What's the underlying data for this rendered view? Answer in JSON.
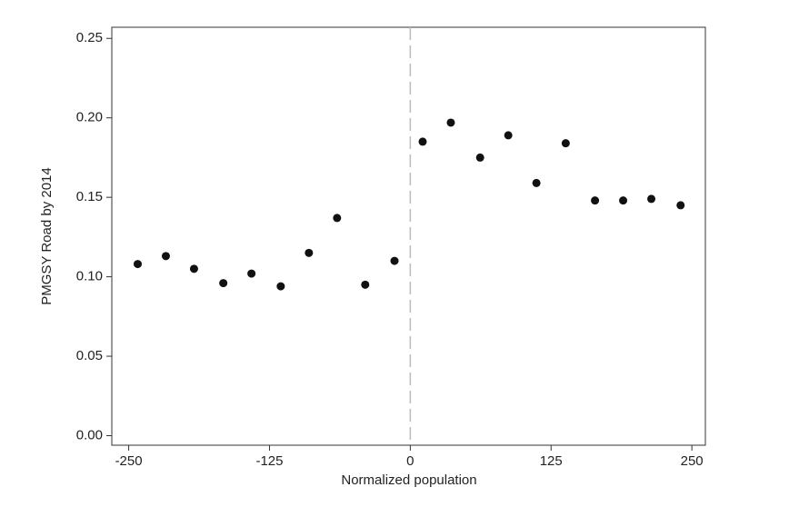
{
  "chart_data": {
    "type": "scatter",
    "x_label": "Normalized population",
    "y_label": "PMGSY Road by 2014",
    "x": [
      -242,
      -217,
      -192,
      -166,
      -141,
      -115,
      -90,
      -65,
      -40,
      -14,
      11,
      36,
      62,
      87,
      112,
      138,
      164,
      189,
      214,
      240
    ],
    "values": [
      0.108,
      0.113,
      0.105,
      0.096,
      0.102,
      0.094,
      0.115,
      0.137,
      0.095,
      0.11,
      0.185,
      0.197,
      0.175,
      0.189,
      0.159,
      0.184,
      0.148,
      0.148,
      0.149,
      0.145
    ],
    "color": "#111111",
    "xlim": [
      -265,
      262
    ],
    "ylim": [
      -0.006,
      0.257
    ],
    "xticks": [
      -250,
      -125,
      0,
      125,
      250
    ],
    "yticks": [
      {
        "value": 0,
        "label": "0.00"
      },
      0.05,
      {
        "value": 0.1,
        "label": "0.10"
      },
      0.15,
      {
        "value": 0.2,
        "label": "0.20"
      },
      0.25
    ],
    "reference_line_x": 0,
    "reference_line_color": "#bbbbbb"
  }
}
